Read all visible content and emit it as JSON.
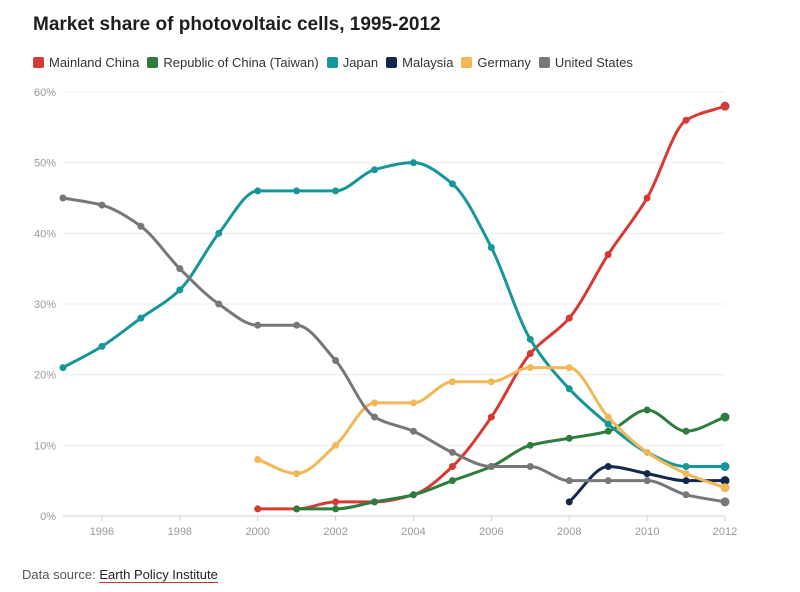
{
  "chart_data": {
    "type": "line",
    "title": "Market share of photovoltaic cells, 1995-2012",
    "xlabel": "",
    "ylabel": "",
    "xlim": [
      1995,
      2012
    ],
    "ylim": [
      0,
      60
    ],
    "x_ticks": [
      1996,
      1998,
      2000,
      2002,
      2004,
      2006,
      2008,
      2010,
      2012
    ],
    "y_ticks": [
      0,
      10,
      20,
      30,
      40,
      50,
      60
    ],
    "y_tick_labels": [
      "0%",
      "10%",
      "20%",
      "30%",
      "40%",
      "50%",
      "60%"
    ],
    "x_tick_labels": [
      "1996",
      "1998",
      "2000",
      "2002",
      "2004",
      "2006",
      "2008",
      "2010",
      "2012"
    ],
    "legend_position": "top",
    "series": [
      {
        "name": "Mainland China",
        "color": "#d63a34",
        "x": [
          2000,
          2001,
          2002,
          2003,
          2004,
          2005,
          2006,
          2007,
          2008,
          2009,
          2010,
          2011,
          2012
        ],
        "values": [
          1,
          1,
          2,
          2,
          3,
          7,
          14,
          23,
          28,
          37,
          45,
          56,
          58
        ]
      },
      {
        "name": "Republic of China (Taiwan)",
        "color": "#2e7d3f",
        "x": [
          2001,
          2002,
          2003,
          2004,
          2005,
          2006,
          2007,
          2008,
          2009,
          2010,
          2011,
          2012
        ],
        "values": [
          1,
          1,
          2,
          3,
          5,
          7,
          10,
          11,
          12,
          15,
          12,
          14
        ]
      },
      {
        "name": "Japan",
        "color": "#17969a",
        "x": [
          1995,
          1996,
          1997,
          1998,
          1999,
          2000,
          2001,
          2002,
          2003,
          2004,
          2005,
          2006,
          2007,
          2008,
          2009,
          2010,
          2011,
          2012
        ],
        "values": [
          21,
          24,
          28,
          32,
          40,
          46,
          46,
          46,
          49,
          50,
          47,
          38,
          25,
          18,
          13,
          9,
          7,
          7
        ]
      },
      {
        "name": "Malaysia",
        "color": "#13294b",
        "x": [
          2008,
          2009,
          2010,
          2011,
          2012
        ],
        "values": [
          2,
          7,
          6,
          5,
          5
        ]
      },
      {
        "name": "Germany",
        "color": "#f2b858",
        "x": [
          2000,
          2001,
          2002,
          2003,
          2004,
          2005,
          2006,
          2007,
          2008,
          2009,
          2010,
          2011,
          2012
        ],
        "values": [
          8,
          6,
          10,
          16,
          16,
          19,
          19,
          21,
          21,
          14,
          9,
          6,
          4
        ]
      },
      {
        "name": "United States",
        "color": "#777777",
        "x": [
          1995,
          1996,
          1997,
          1998,
          1999,
          2000,
          2001,
          2002,
          2003,
          2004,
          2005,
          2006,
          2007,
          2008,
          2009,
          2010,
          2011,
          2012
        ],
        "values": [
          45,
          44,
          41,
          35,
          30,
          27,
          27,
          22,
          14,
          12,
          9,
          7,
          7,
          5,
          5,
          5,
          3,
          2
        ]
      }
    ]
  },
  "source": {
    "prefix": "Data source: ",
    "link_text": "Earth Policy Institute"
  }
}
